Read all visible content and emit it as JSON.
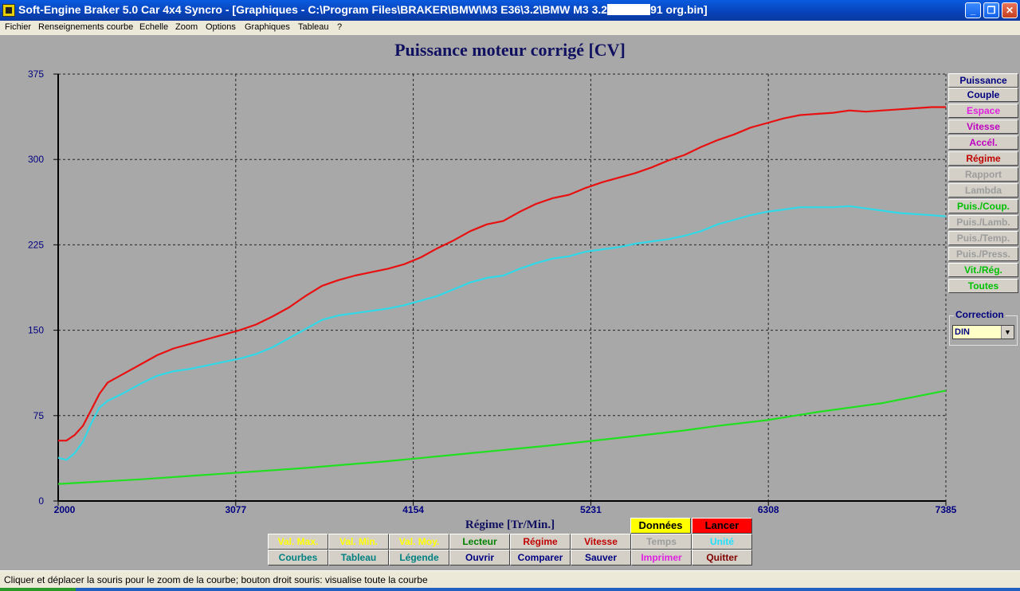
{
  "window": {
    "title_prefix": "Soft-Engine Braker 5.0 Car 4x4 Syncro - [Graphiques - C:\\Program Files\\BRAKER\\BMW\\M3 E36\\3.2\\BMW M3 3.2",
    "title_suffix": "91 org.bin]",
    "buttons": {
      "minimize": "_",
      "restore": "❐",
      "close": "✕"
    }
  },
  "menu": [
    "Fichier",
    "Renseignements courbe",
    "Echelle",
    "Zoom",
    "Options",
    "Graphiques",
    "Tableau",
    "?"
  ],
  "side_buttons": [
    {
      "label": "Puissance",
      "color": "#000080"
    },
    {
      "label": "Couple",
      "color": "#000080"
    },
    {
      "label": "Espace",
      "color": "#E020E0"
    },
    {
      "label": "Vitesse",
      "color": "#C000C0"
    },
    {
      "label": "Accél.",
      "color": "#C000C0"
    },
    {
      "label": "Régime",
      "color": "#C00000"
    },
    {
      "label": "Rapport",
      "color": "#9C9C9C"
    },
    {
      "label": "Lambda",
      "color": "#9C9C9C"
    },
    {
      "label": "Puis./Coup.",
      "color": "#00C000"
    },
    {
      "label": "Puis./Lamb.",
      "color": "#9C9C9C"
    },
    {
      "label": "Puis./Temp.",
      "color": "#9C9C9C"
    },
    {
      "label": "Puis./Press.",
      "color": "#9C9C9C"
    },
    {
      "label": "Vit./Rég.",
      "color": "#00C000"
    },
    {
      "label": "Toutes",
      "color": "#00C000"
    }
  ],
  "correction": {
    "label": "Correction",
    "value": "DIN"
  },
  "bottom_buttons_row1": [
    {
      "label": "Val. Max.",
      "color": "#FFFF00"
    },
    {
      "label": "Val. Min.",
      "color": "#FFFF00"
    },
    {
      "label": "Val. Moy.",
      "color": "#FFFF00"
    },
    {
      "label": "Lecteur",
      "color": "#008000"
    },
    {
      "label": "Régime",
      "color": "#C00000"
    },
    {
      "label": "Vitesse",
      "color": "#C00000"
    },
    {
      "label": "Temps",
      "color": "#9C9C9C"
    },
    {
      "label": "Unité",
      "color": "#20E0FF"
    }
  ],
  "bottom_buttons_row2": [
    {
      "label": "Courbes",
      "color": "#008080"
    },
    {
      "label": "Tableau",
      "color": "#008080"
    },
    {
      "label": "Légende",
      "color": "#008080"
    },
    {
      "label": "Ouvrir",
      "color": "#000080"
    },
    {
      "label": "Comparer",
      "color": "#000080"
    },
    {
      "label": "Sauver",
      "color": "#000080"
    },
    {
      "label": "Imprimer",
      "color": "#E020E0"
    },
    {
      "label": "Quitter",
      "color": "#800000"
    }
  ],
  "action_buttons": [
    {
      "label": "Données",
      "bg": "#FFFF00",
      "color": "#000000"
    },
    {
      "label": "Lancer",
      "bg": "#FF0000",
      "color": "#000000"
    }
  ],
  "status": "Cliquer et déplacer la souris pour le zoom de la courbe; bouton droit souris: visualise toute la courbe",
  "chart_data": {
    "type": "line",
    "title": "Puissance moteur corrigé [CV]",
    "xlabel": "Régime [Tr/Min.]",
    "ylabel": "",
    "xlim": [
      2000,
      7385
    ],
    "ylim": [
      0,
      375
    ],
    "x_ticks": [
      2000,
      3077,
      4154,
      5231,
      6308,
      7385
    ],
    "y_ticks": [
      0,
      75,
      150,
      225,
      300,
      375
    ],
    "grid": true,
    "series": [
      {
        "color": "#E81010",
        "points": [
          [
            2000,
            53
          ],
          [
            2050,
            53
          ],
          [
            2100,
            58
          ],
          [
            2150,
            66
          ],
          [
            2200,
            80
          ],
          [
            2250,
            94
          ],
          [
            2300,
            104
          ],
          [
            2400,
            112
          ],
          [
            2500,
            120
          ],
          [
            2600,
            128
          ],
          [
            2700,
            134
          ],
          [
            2800,
            138
          ],
          [
            2900,
            142
          ],
          [
            3000,
            146
          ],
          [
            3100,
            150
          ],
          [
            3200,
            155
          ],
          [
            3300,
            162
          ],
          [
            3400,
            170
          ],
          [
            3500,
            180
          ],
          [
            3600,
            189
          ],
          [
            3700,
            194
          ],
          [
            3800,
            198
          ],
          [
            3900,
            201
          ],
          [
            4000,
            204
          ],
          [
            4100,
            208
          ],
          [
            4200,
            214
          ],
          [
            4300,
            222
          ],
          [
            4400,
            229
          ],
          [
            4500,
            237
          ],
          [
            4600,
            243
          ],
          [
            4700,
            246
          ],
          [
            4800,
            254
          ],
          [
            4900,
            261
          ],
          [
            5000,
            266
          ],
          [
            5100,
            269
          ],
          [
            5200,
            275
          ],
          [
            5300,
            280
          ],
          [
            5400,
            284
          ],
          [
            5500,
            288
          ],
          [
            5600,
            293
          ],
          [
            5700,
            299
          ],
          [
            5800,
            304
          ],
          [
            5900,
            311
          ],
          [
            6000,
            317
          ],
          [
            6100,
            322
          ],
          [
            6200,
            328
          ],
          [
            6300,
            332
          ],
          [
            6400,
            336
          ],
          [
            6500,
            339
          ],
          [
            6600,
            340
          ],
          [
            6700,
            341
          ],
          [
            6800,
            343
          ],
          [
            6900,
            342
          ],
          [
            7000,
            343
          ],
          [
            7100,
            344
          ],
          [
            7200,
            345
          ],
          [
            7300,
            346
          ],
          [
            7385,
            346
          ]
        ]
      },
      {
        "color": "#30D8E8",
        "points": [
          [
            2000,
            38
          ],
          [
            2050,
            36
          ],
          [
            2100,
            42
          ],
          [
            2150,
            52
          ],
          [
            2200,
            68
          ],
          [
            2250,
            82
          ],
          [
            2300,
            88
          ],
          [
            2400,
            95
          ],
          [
            2500,
            103
          ],
          [
            2600,
            110
          ],
          [
            2700,
            114
          ],
          [
            2800,
            116
          ],
          [
            2900,
            119
          ],
          [
            3000,
            122
          ],
          [
            3100,
            125
          ],
          [
            3200,
            129
          ],
          [
            3300,
            135
          ],
          [
            3400,
            143
          ],
          [
            3500,
            151
          ],
          [
            3600,
            159
          ],
          [
            3700,
            163
          ],
          [
            3800,
            165
          ],
          [
            3900,
            167
          ],
          [
            4000,
            169
          ],
          [
            4100,
            172
          ],
          [
            4200,
            176
          ],
          [
            4300,
            180
          ],
          [
            4400,
            186
          ],
          [
            4500,
            192
          ],
          [
            4600,
            196
          ],
          [
            4700,
            198
          ],
          [
            4800,
            204
          ],
          [
            4900,
            209
          ],
          [
            5000,
            213
          ],
          [
            5100,
            215
          ],
          [
            5200,
            219
          ],
          [
            5300,
            221
          ],
          [
            5400,
            223
          ],
          [
            5500,
            226
          ],
          [
            5600,
            228
          ],
          [
            5700,
            230
          ],
          [
            5800,
            233
          ],
          [
            5900,
            237
          ],
          [
            6000,
            243
          ],
          [
            6100,
            247
          ],
          [
            6200,
            251
          ],
          [
            6300,
            254
          ],
          [
            6400,
            256
          ],
          [
            6500,
            258
          ],
          [
            6600,
            258
          ],
          [
            6700,
            258
          ],
          [
            6800,
            259
          ],
          [
            6900,
            257
          ],
          [
            7000,
            255
          ],
          [
            7100,
            253
          ],
          [
            7200,
            252
          ],
          [
            7300,
            251
          ],
          [
            7385,
            250
          ]
        ]
      },
      {
        "color": "#20E020",
        "points": [
          [
            2000,
            15
          ],
          [
            2500,
            19
          ],
          [
            3000,
            24
          ],
          [
            3500,
            29
          ],
          [
            4000,
            35
          ],
          [
            4500,
            42
          ],
          [
            5000,
            49
          ],
          [
            5500,
            57
          ],
          [
            5800,
            62
          ],
          [
            6000,
            66
          ],
          [
            6300,
            71
          ],
          [
            6600,
            78
          ],
          [
            7000,
            86
          ],
          [
            7385,
            97
          ]
        ]
      }
    ]
  }
}
